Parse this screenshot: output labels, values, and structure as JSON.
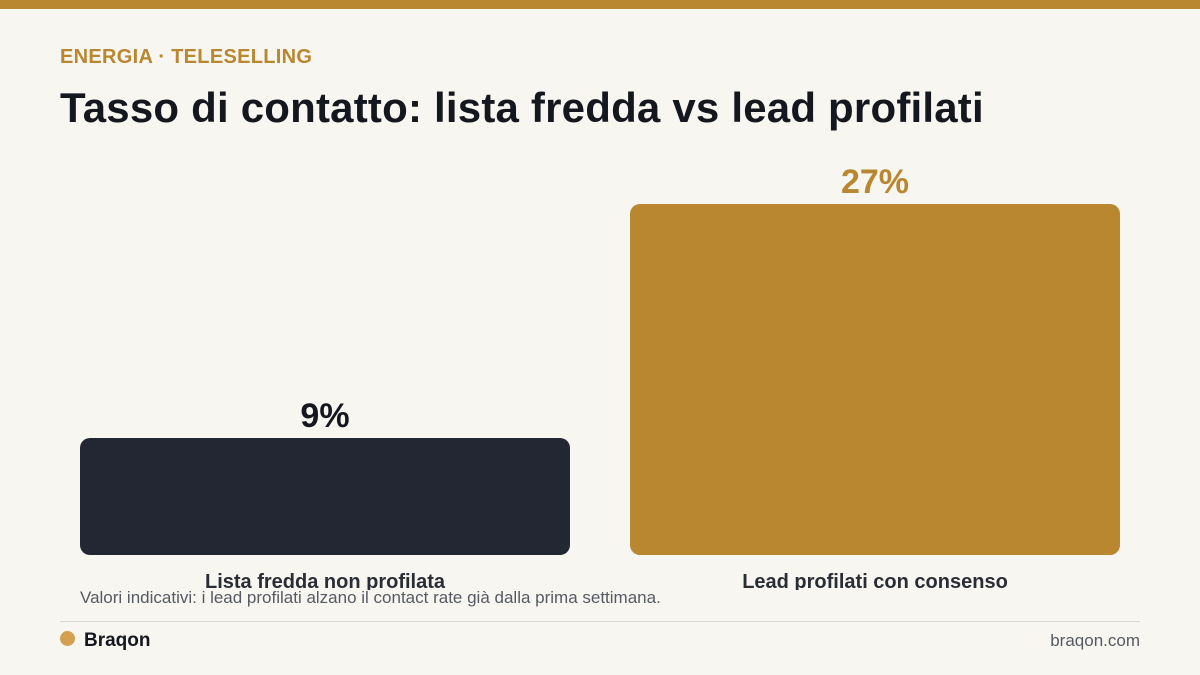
{
  "header": {
    "eyebrow": "ENERGIA · TELESELLING",
    "title": "Tasso di contatto: lista fredda vs lead profilati"
  },
  "chart_data": {
    "type": "bar",
    "title": "Tasso di contatto: lista fredda vs lead profilati",
    "categories": [
      "Lista fredda non profilata",
      "Lead profilati con consenso"
    ],
    "values": [
      9,
      27
    ],
    "value_labels": [
      "9%",
      "27%"
    ],
    "unit": "%",
    "ylim": [
      0,
      30
    ],
    "grid": false,
    "legend": "none",
    "colors": [
      "#232733",
      "#b88730"
    ],
    "label_colors": [
      "#15171f",
      "#b88730"
    ]
  },
  "footnote": "Valori indicativi: i lead profilati alzano il contact rate già dalla prima settimana.",
  "footer": {
    "brand": "Braqon",
    "site": "braqon.com"
  }
}
